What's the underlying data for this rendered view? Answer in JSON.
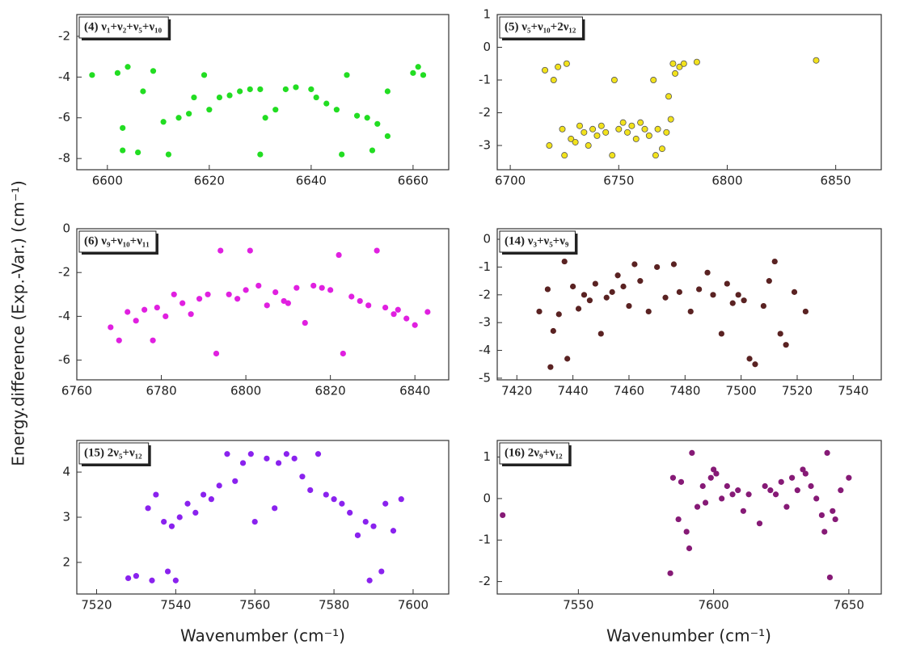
{
  "y_label": "Energy.difference (Exp.-Var.) (cm⁻¹)",
  "x_labels": [
    "Wavenumber (cm⁻¹)",
    "Wavenumber (cm⁻¹)"
  ],
  "chart_data": [
    {
      "type": "scatter",
      "title": "(4) ν₁+ν₂+ν₅+ν₁₀",
      "color": "#22dd22",
      "xlim": [
        6594,
        6667
      ],
      "xticks": [
        6600,
        6620,
        6640,
        6660
      ],
      "ylim": [
        -8.55,
        -0.93
      ],
      "yticks": [
        -8,
        -6,
        -4,
        -2
      ],
      "x": [
        6597,
        6602,
        6603,
        6603,
        6604,
        6606,
        6607,
        6609,
        6611,
        6612,
        6614,
        6616,
        6617,
        6619,
        6620,
        6622,
        6624,
        6626,
        6628,
        6630,
        6630,
        6631,
        6633,
        6635,
        6637,
        6640,
        6641,
        6643,
        6645,
        6646,
        6647,
        6649,
        6651,
        6652,
        6653,
        6655,
        6655,
        6660,
        6661,
        6662
      ],
      "values": [
        -3.9,
        -3.8,
        -6.5,
        -7.6,
        -3.5,
        -7.7,
        -4.7,
        -3.7,
        -6.2,
        -7.8,
        -6.0,
        -5.8,
        -5.0,
        -3.9,
        -5.6,
        -5.0,
        -4.9,
        -4.7,
        -4.6,
        -7.8,
        -4.6,
        -6.0,
        -5.6,
        -4.6,
        -4.5,
        -4.6,
        -5.0,
        -5.3,
        -5.6,
        -7.8,
        -3.9,
        -5.9,
        -6.0,
        -7.6,
        -6.3,
        -6.9,
        -4.7,
        -3.8,
        -3.5,
        -3.9
      ]
    },
    {
      "type": "scatter",
      "title": "(5) ν₅+ν₁₀+2ν₁₂",
      "color": "#f2e21c",
      "xlim": [
        6694,
        6871
      ],
      "xticks": [
        6700,
        6750,
        6800,
        6850
      ],
      "ylim": [
        -3.74,
        1
      ],
      "yticks": [
        -3,
        -2,
        -1,
        0,
        1
      ],
      "x": [
        6716,
        6718,
        6720,
        6722,
        6724,
        6725,
        6726,
        6728,
        6730,
        6732,
        6734,
        6736,
        6738,
        6740,
        6742,
        6744,
        6747,
        6748,
        6750,
        6752,
        6754,
        6756,
        6758,
        6760,
        6762,
        6764,
        6766,
        6767,
        6768,
        6770,
        6772,
        6773,
        6774,
        6775,
        6776,
        6778,
        6780,
        6786,
        6841
      ],
      "values": [
        -0.7,
        -3.0,
        -1.0,
        -0.6,
        -2.5,
        -3.3,
        -0.5,
        -2.8,
        -2.9,
        -2.4,
        -2.6,
        -3.0,
        -2.5,
        -2.7,
        -2.4,
        -2.6,
        -3.3,
        -1.0,
        -2.5,
        -2.3,
        -2.6,
        -2.4,
        -2.8,
        -2.3,
        -2.5,
        -2.7,
        -1.0,
        -3.3,
        -2.5,
        -3.1,
        -2.6,
        -1.5,
        -2.2,
        -0.5,
        -0.8,
        -0.6,
        -0.5,
        -0.45,
        -0.4
      ]
    },
    {
      "type": "scatter",
      "title": "(6) ν₉+ν₁₀+ν₁₁",
      "color": "#e020e0",
      "xlim": [
        6760,
        6848
      ],
      "xticks": [
        6760,
        6780,
        6800,
        6820,
        6840
      ],
      "ylim": [
        -6.9,
        0
      ],
      "yticks": [
        -6,
        -4,
        -2,
        0
      ],
      "x": [
        6768,
        6770,
        6772,
        6774,
        6776,
        6778,
        6779,
        6781,
        6783,
        6785,
        6787,
        6789,
        6791,
        6793,
        6794,
        6796,
        6798,
        6800,
        6801,
        6803,
        6805,
        6807,
        6809,
        6810,
        6812,
        6814,
        6816,
        6818,
        6820,
        6822,
        6823,
        6825,
        6827,
        6829,
        6831,
        6833,
        6835,
        6836,
        6838,
        6840,
        6843
      ],
      "values": [
        -4.5,
        -5.1,
        -3.8,
        -4.2,
        -3.7,
        -5.1,
        -3.6,
        -4.0,
        -3.0,
        -3.4,
        -3.9,
        -3.2,
        -3.0,
        -5.7,
        -1.0,
        -3.0,
        -3.2,
        -2.8,
        -1.0,
        -2.6,
        -3.5,
        -2.9,
        -3.3,
        -3.4,
        -2.7,
        -4.3,
        -2.6,
        -2.7,
        -2.8,
        -1.2,
        -5.7,
        -3.1,
        -3.3,
        -3.5,
        -1.0,
        -3.6,
        -3.9,
        -3.7,
        -4.1,
        -4.4,
        -3.8
      ]
    },
    {
      "type": "scatter",
      "title": "(14) ν₃+ν₅+ν₉",
      "color": "#5a2222",
      "xlim": [
        7413,
        7550
      ],
      "xticks": [
        7420,
        7440,
        7460,
        7480,
        7500,
        7520,
        7540
      ],
      "ylim": [
        -5.06,
        0.38
      ],
      "yticks": [
        -5,
        -4,
        -3,
        -2,
        -1,
        0
      ],
      "x": [
        7428,
        7431,
        7432,
        7433,
        7435,
        7437,
        7438,
        7440,
        7442,
        7444,
        7446,
        7448,
        7450,
        7452,
        7454,
        7456,
        7458,
        7460,
        7462,
        7464,
        7467,
        7470,
        7473,
        7476,
        7478,
        7482,
        7485,
        7488,
        7490,
        7493,
        7495,
        7497,
        7499,
        7501,
        7503,
        7505,
        7508,
        7510,
        7512,
        7514,
        7516,
        7519,
        7523
      ],
      "values": [
        -2.6,
        -1.8,
        -4.6,
        -3.3,
        -2.7,
        -0.8,
        -4.3,
        -1.7,
        -2.5,
        -2.0,
        -2.2,
        -1.6,
        -3.4,
        -2.1,
        -1.9,
        -1.3,
        -1.7,
        -2.4,
        -0.9,
        -1.5,
        -2.6,
        -1.0,
        -2.1,
        -0.9,
        -1.9,
        -2.6,
        -1.8,
        -1.2,
        -2.0,
        -3.4,
        -1.6,
        -2.3,
        -2.0,
        -2.2,
        -4.3,
        -4.5,
        -2.4,
        -1.5,
        -0.8,
        -3.4,
        -3.8,
        -1.9,
        -2.6
      ]
    },
    {
      "type": "scatter",
      "title": "(15) 2ν₅+ν₁₂",
      "color": "#8a22ee",
      "xlim": [
        7515,
        7609
      ],
      "xticks": [
        7520,
        7540,
        7560,
        7580,
        7600
      ],
      "ylim": [
        1.3,
        4.7
      ],
      "yticks": [
        2,
        3,
        4
      ],
      "x": [
        7528,
        7530,
        7533,
        7534,
        7535,
        7537,
        7538,
        7539,
        7540,
        7541,
        7543,
        7545,
        7547,
        7549,
        7551,
        7553,
        7555,
        7557,
        7559,
        7560,
        7563,
        7565,
        7566,
        7568,
        7570,
        7572,
        7574,
        7576,
        7578,
        7580,
        7582,
        7584,
        7586,
        7588,
        7589,
        7590,
        7592,
        7593,
        7595,
        7597
      ],
      "values": [
        1.65,
        1.7,
        3.2,
        1.6,
        3.5,
        2.9,
        1.8,
        2.8,
        1.6,
        3.0,
        3.3,
        3.1,
        3.5,
        3.4,
        3.7,
        4.4,
        3.8,
        4.2,
        4.4,
        2.9,
        4.3,
        3.2,
        4.2,
        4.4,
        4.3,
        3.9,
        3.6,
        4.4,
        3.5,
        3.4,
        3.3,
        3.1,
        2.6,
        2.9,
        1.6,
        2.8,
        1.8,
        3.3,
        2.7,
        3.4
      ]
    },
    {
      "type": "scatter",
      "title": "(16) 2ν₉+ν₁₂",
      "color": "#861a76",
      "xlim": [
        7520,
        7662
      ],
      "xticks": [
        7550,
        7600,
        7650
      ],
      "ylim": [
        -2.3,
        1.4
      ],
      "yticks": [
        -2,
        -1,
        0,
        1
      ],
      "x": [
        7522,
        7584,
        7585,
        7587,
        7588,
        7590,
        7591,
        7592,
        7594,
        7596,
        7597,
        7599,
        7600,
        7601,
        7603,
        7605,
        7607,
        7609,
        7611,
        7613,
        7617,
        7619,
        7621,
        7623,
        7625,
        7627,
        7629,
        7631,
        7633,
        7634,
        7636,
        7638,
        7640,
        7641,
        7642,
        7643,
        7644,
        7645,
        7647,
        7650
      ],
      "values": [
        -0.4,
        -1.8,
        0.5,
        -0.5,
        0.4,
        -0.8,
        -1.2,
        1.1,
        -0.2,
        0.3,
        -0.1,
        0.5,
        0.7,
        0.6,
        0.0,
        0.3,
        0.1,
        0.2,
        -0.3,
        0.1,
        -0.6,
        0.3,
        0.2,
        0.1,
        0.4,
        -0.2,
        0.5,
        0.2,
        0.7,
        0.6,
        0.3,
        0.0,
        -0.4,
        -0.8,
        1.1,
        -1.9,
        -0.3,
        -0.5,
        0.2,
        0.5
      ]
    }
  ]
}
